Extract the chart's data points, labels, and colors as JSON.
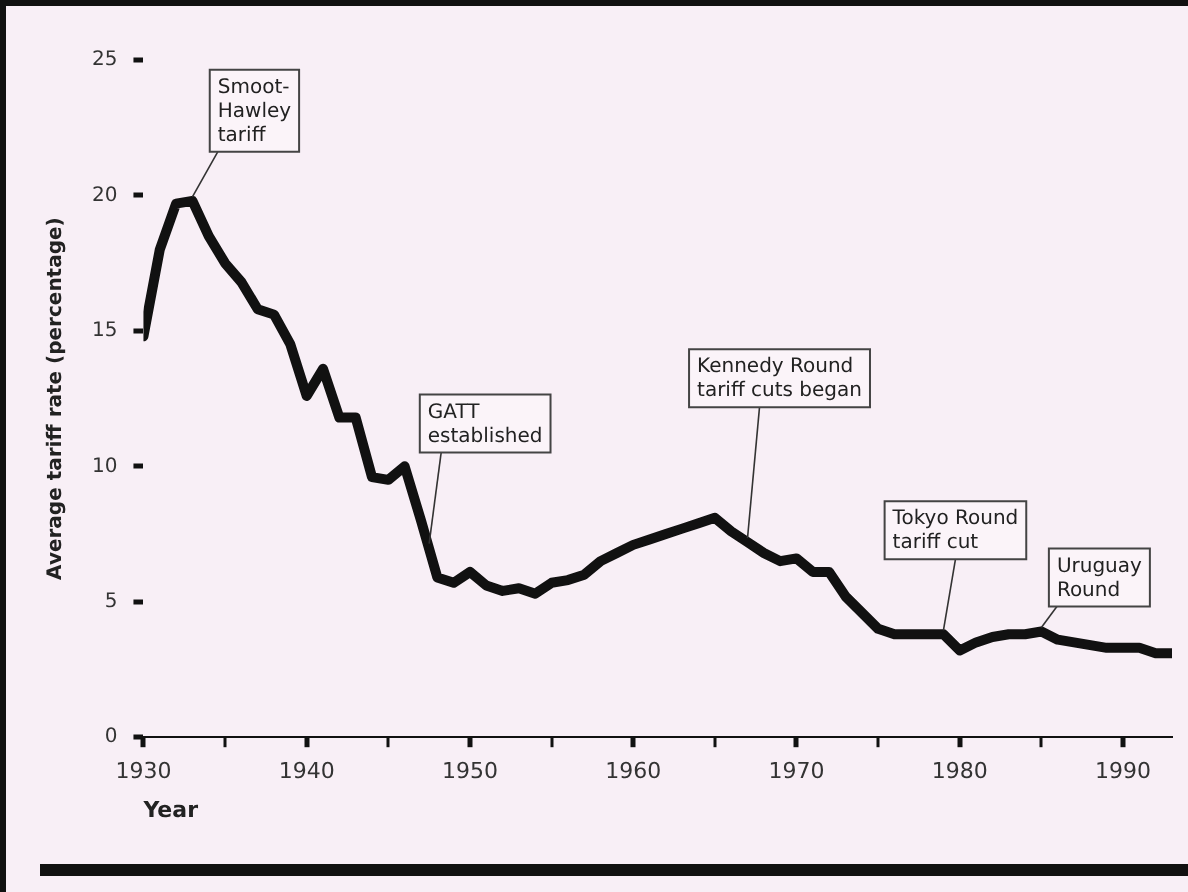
{
  "chart_data": {
    "type": "line",
    "xlabel": "Year",
    "ylabel": "Average tariff rate (percentage)",
    "x": [
      1930,
      1931,
      1932,
      1933,
      1934,
      1935,
      1936,
      1937,
      1938,
      1939,
      1940,
      1941,
      1942,
      1943,
      1944,
      1945,
      1946,
      1947,
      1948,
      1949,
      1950,
      1951,
      1952,
      1953,
      1954,
      1955,
      1956,
      1957,
      1958,
      1959,
      1960,
      1961,
      1962,
      1963,
      1964,
      1965,
      1966,
      1967,
      1968,
      1969,
      1970,
      1971,
      1972,
      1973,
      1974,
      1975,
      1976,
      1977,
      1978,
      1979,
      1980,
      1981,
      1982,
      1983,
      1984,
      1985,
      1986,
      1987,
      1988,
      1989,
      1990,
      1991,
      1992,
      1993
    ],
    "series": [
      {
        "color": "#111111",
        "values": [
          14.8,
          18,
          19.7,
          19.8,
          18.5,
          17.5,
          16.8,
          15.8,
          15.6,
          14.5,
          12.6,
          13.6,
          11.8,
          11.8,
          9.6,
          9.5,
          10,
          8,
          5.9,
          5.7,
          6.1,
          5.6,
          5.4,
          5.5,
          5.3,
          5.7,
          5.8,
          6,
          6.5,
          6.8,
          7.1,
          7.3,
          7.5,
          7.7,
          7.9,
          8.1,
          7.6,
          7.2,
          6.8,
          6.5,
          6.6,
          6.1,
          6.1,
          5.2,
          4.6,
          4,
          3.8,
          3.8,
          3.8,
          3.8,
          3.2,
          3.5,
          3.7,
          3.8,
          3.8,
          3.9,
          3.6,
          3.5,
          3.4,
          3.3,
          3.3,
          3.3,
          3.1,
          3.1
        ]
      }
    ],
    "xticks": [
      1930,
      {
        "value": 1935,
        "label": null
      },
      1940,
      {
        "value": 1945,
        "label": null
      },
      1950,
      {
        "value": 1955,
        "label": null
      },
      1960,
      {
        "value": 1965,
        "label": null
      },
      1970,
      {
        "value": 1975,
        "label": null
      },
      1980,
      {
        "value": 1985,
        "label": null
      },
      1990
    ],
    "xlim": [
      1930,
      1993
    ],
    "ylim": [
      0,
      25
    ],
    "yticks": [
      0,
      5,
      10,
      15,
      20,
      25
    ],
    "grid": false,
    "legend": false,
    "marker": "none",
    "line_style": "solid",
    "annotations": [
      {
        "text": "Smoot-\nHawley\ntariff",
        "x": 1933,
        "y": 19.8
      },
      {
        "text": "GATT\nestablished",
        "x": 1947.5,
        "y": 7
      },
      {
        "text": "Kennedy Round\ntariff cuts began",
        "x": 1967,
        "y": 7.2
      },
      {
        "text": "Tokyo Round\ntariff cut",
        "x": 1979,
        "y": 3.8
      },
      {
        "text": "Uruguay\nRound",
        "x": 1985,
        "y": 3.9
      }
    ]
  }
}
